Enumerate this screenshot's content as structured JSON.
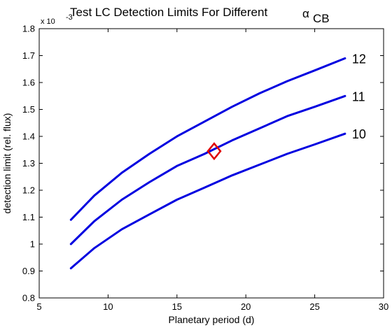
{
  "chart_data": {
    "type": "line",
    "title": "Test LC Detection Limits For Different",
    "title_symbol": "α",
    "title_subscript": "CB",
    "xlabel": "Planetary period (d)",
    "ylabel": "detection limit (rel. flux)",
    "y_multiplier_label": "x 10",
    "y_multiplier_exponent": "-3",
    "xlim": [
      5,
      30
    ],
    "ylim": [
      0.8,
      1.8
    ],
    "xticks": [
      5,
      10,
      15,
      20,
      25,
      30
    ],
    "yticks": [
      0.8,
      0.9,
      1,
      1.1,
      1.2,
      1.3,
      1.4,
      1.5,
      1.6,
      1.7,
      1.8
    ],
    "ytick_labels": [
      "0.8",
      "0.9",
      "1",
      "1.1",
      "1.2",
      "1.3",
      "1.4",
      "1.5",
      "1.6",
      "1.7",
      "1.8"
    ],
    "grid": false,
    "line_color": "#0000e0",
    "marker_color": "#e00000",
    "series": [
      {
        "label": "10",
        "x": [
          7.3,
          9,
          11,
          13,
          15,
          17,
          19,
          21,
          23,
          25,
          27.2
        ],
        "y": [
          0.91,
          0.985,
          1.055,
          1.11,
          1.165,
          1.21,
          1.255,
          1.295,
          1.335,
          1.37,
          1.41
        ]
      },
      {
        "label": "11",
        "x": [
          7.3,
          9,
          11,
          13,
          15,
          17,
          19,
          21,
          23,
          25,
          27.2
        ],
        "y": [
          1.0,
          1.085,
          1.165,
          1.23,
          1.29,
          1.335,
          1.385,
          1.43,
          1.475,
          1.51,
          1.55
        ]
      },
      {
        "label": "12",
        "x": [
          7.3,
          9,
          11,
          13,
          15,
          17,
          19,
          21,
          23,
          25,
          27.2
        ],
        "y": [
          1.09,
          1.18,
          1.265,
          1.335,
          1.4,
          1.455,
          1.51,
          1.56,
          1.605,
          1.645,
          1.69
        ]
      }
    ],
    "marker": {
      "shape": "diamond",
      "x": 17.7,
      "y": 1.345
    }
  }
}
